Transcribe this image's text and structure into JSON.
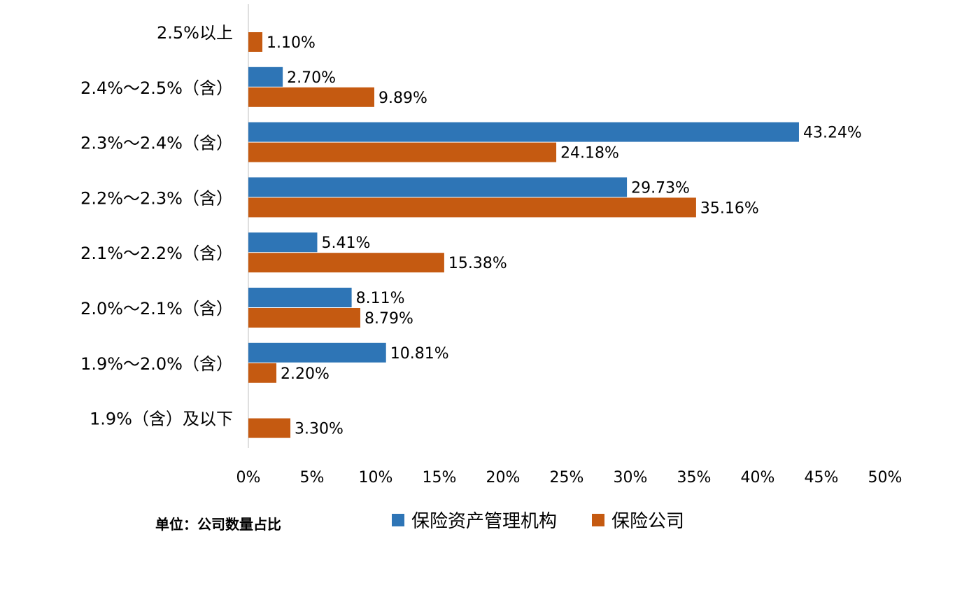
{
  "chart_data": {
    "type": "bar",
    "orientation": "horizontal",
    "categories": [
      "2.5%以上",
      "2.4%～2.5%（含）",
      "2.3%～2.4%（含）",
      "2.2%～2.3%（含）",
      "2.1%～2.2%（含）",
      "2.0%～2.1%（含）",
      "1.9%～2.0%（含）",
      "1.9%（含）及以下"
    ],
    "series": [
      {
        "name": "保险资产管理机构",
        "color": "#2E75B6",
        "values": [
          null,
          2.7,
          43.24,
          29.73,
          5.41,
          8.11,
          10.81,
          null
        ],
        "labels": [
          "",
          "2.70%",
          "43.24%",
          "29.73%",
          "5.41%",
          "8.11%",
          "10.81%",
          ""
        ]
      },
      {
        "name": "保险公司",
        "color": "#C55A11",
        "values": [
          1.1,
          9.89,
          24.18,
          35.16,
          15.38,
          8.79,
          2.2,
          3.3
        ],
        "labels": [
          "1.10%",
          "9.89%",
          "24.18%",
          "35.16%",
          "15.38%",
          "8.79%",
          "2.20%",
          "3.30%"
        ]
      }
    ],
    "xlim": [
      0,
      50
    ],
    "x_ticks": [
      "0%",
      "5%",
      "10%",
      "15%",
      "20%",
      "25%",
      "30%",
      "35%",
      "40%",
      "45%",
      "50%"
    ],
    "x_tick_values": [
      0,
      5,
      10,
      15,
      20,
      25,
      30,
      35,
      40,
      45,
      50
    ],
    "grid": false,
    "legend_position": "bottom",
    "unit_note": "单位：公司数量占比"
  }
}
